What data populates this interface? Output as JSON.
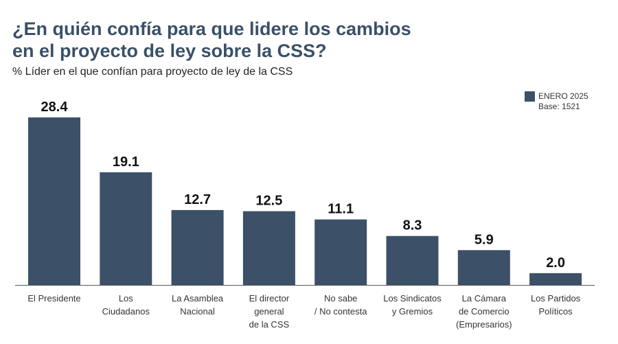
{
  "chart_data": {
    "type": "bar",
    "title_lines": [
      "¿En quién confía para que lidere los cambios",
      "en el proyecto de ley sobre la CSS?"
    ],
    "subtitle": "% Líder en el que confían para proyecto de ley de la CSS",
    "legend": {
      "series_name": "ENERO 2025",
      "base_label": "Base:",
      "base_value": "1521"
    },
    "bar_color": "#3c5068",
    "categories": [
      [
        "El Presidente"
      ],
      [
        "Los",
        "Ciudadanos"
      ],
      [
        "La Asamblea",
        "Nacional"
      ],
      [
        "El director",
        "general",
        "de la CSS"
      ],
      [
        "No sabe",
        "/ No contesta"
      ],
      [
        "Los Sindicatos",
        "y Gremios"
      ],
      [
        "La Cámara",
        "de Comercio",
        "(Empresarios)"
      ],
      [
        "Los Partidos",
        "Políticos"
      ]
    ],
    "values": [
      28.4,
      19.1,
      12.7,
      12.5,
      11.1,
      8.3,
      5.9,
      2.0
    ],
    "value_labels": [
      "28.4",
      "19.1",
      "12.7",
      "12.5",
      "11.1",
      "8.3",
      "5.9",
      "2.0"
    ],
    "ylim": [
      0,
      28.4
    ],
    "grid": false
  }
}
